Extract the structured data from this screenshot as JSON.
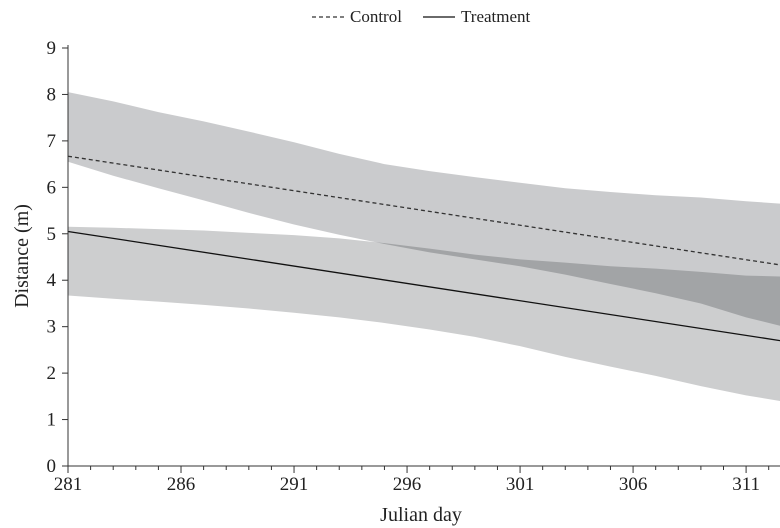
{
  "chart_data": {
    "type": "line",
    "title": "",
    "xlabel": "Julian day",
    "ylabel": "Distance (m)",
    "xlim": [
      281,
      312.5
    ],
    "ylim": [
      0,
      9
    ],
    "xticks": [
      281,
      286,
      291,
      296,
      301,
      306,
      311
    ],
    "yticks": [
      0,
      1,
      2,
      3,
      4,
      5,
      6,
      7,
      8,
      9
    ],
    "grid": false,
    "legend_position": "top-center",
    "series": [
      {
        "name": "Control",
        "style": "dashed",
        "color": "#333333",
        "x": [
          281,
          312.5
        ],
        "y": [
          6.67,
          4.33
        ],
        "band_x": [
          281,
          283,
          285,
          287,
          289,
          291,
          293,
          295,
          297,
          299,
          301,
          303,
          305,
          307,
          309,
          311,
          312.5
        ],
        "band_upper": [
          8.05,
          7.85,
          7.62,
          7.42,
          7.2,
          6.97,
          6.72,
          6.5,
          6.35,
          6.22,
          6.1,
          5.98,
          5.9,
          5.83,
          5.78,
          5.7,
          5.65
        ],
        "band_lower": [
          6.55,
          6.25,
          5.98,
          5.72,
          5.45,
          5.2,
          4.98,
          4.78,
          4.6,
          4.45,
          4.3,
          4.12,
          3.92,
          3.72,
          3.5,
          3.2,
          3.02
        ],
        "band_color": "#b8b9bc"
      },
      {
        "name": "Treatment",
        "style": "solid",
        "color": "#111111",
        "x": [
          281,
          312.5
        ],
        "y": [
          5.05,
          2.7
        ],
        "band_x": [
          281,
          283,
          285,
          287,
          289,
          291,
          293,
          295,
          297,
          299,
          301,
          303,
          305,
          307,
          309,
          311,
          312.5
        ],
        "band_upper": [
          5.15,
          5.13,
          5.1,
          5.07,
          5.02,
          4.97,
          4.9,
          4.8,
          4.68,
          4.55,
          4.45,
          4.38,
          4.3,
          4.25,
          4.18,
          4.1,
          4.08
        ],
        "band_lower": [
          3.67,
          3.6,
          3.54,
          3.47,
          3.39,
          3.3,
          3.2,
          3.08,
          2.94,
          2.78,
          2.58,
          2.35,
          2.14,
          1.94,
          1.72,
          1.52,
          1.4
        ],
        "band_color": "#cdcecf"
      }
    ]
  }
}
